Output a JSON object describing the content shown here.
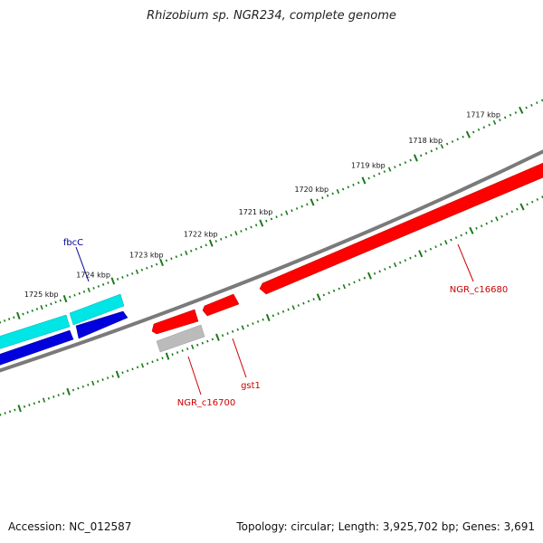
{
  "title": "Rhizobium sp. NGR234, complete genome",
  "accession": "Accession: NC_012587",
  "summary": "Topology: circular; Length: 3,925,702 bp; Genes: 3,691",
  "ruler": {
    "labels": [
      "1717 kbp",
      "1718 kbp",
      "1719 kbp",
      "1720 kbp",
      "1721 kbp",
      "1722 kbp",
      "1723 kbp",
      "1724 kbp",
      "1725 kbp"
    ],
    "tick_color": "#1a7a1a"
  },
  "genes": {
    "fbcC": {
      "label": "fbcC",
      "color": "#000099"
    },
    "gst1": {
      "label": "gst1",
      "color": "#cc0000"
    },
    "NGR_c16700": {
      "label": "NGR_c16700",
      "color": "#cc0000"
    },
    "NGR_c16680": {
      "label": "NGR_c16680",
      "color": "#cc0000"
    }
  },
  "colors": {
    "backbone": "#7a7a7a",
    "red_feature": "#ff0000",
    "blue_feature": "#0000dd",
    "cyan_feature": "#00e5e5",
    "grey_feature": "#bbbbbb"
  }
}
